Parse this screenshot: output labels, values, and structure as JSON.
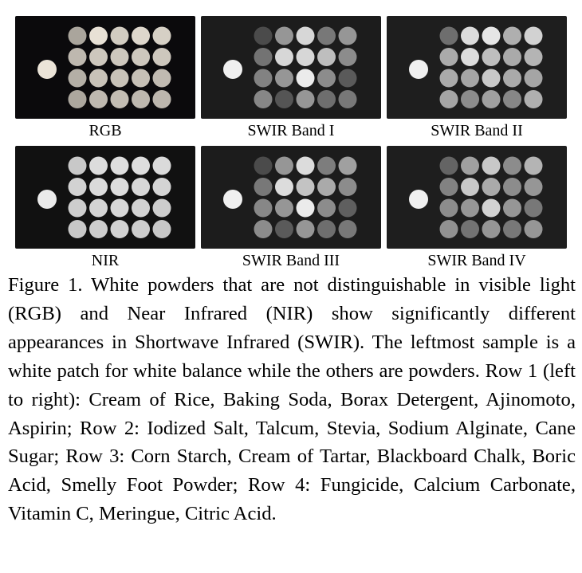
{
  "panels": [
    {
      "label": "RGB",
      "bg": "#0b0a0c",
      "white_patch": 235,
      "tint": [
        1.0,
        0.97,
        0.92
      ],
      "levels": [
        [
          170,
          232,
          210,
          222,
          214
        ],
        [
          190,
          205,
          205,
          205,
          205
        ],
        [
          180,
          200,
          200,
          198,
          192
        ],
        [
          172,
          190,
          195,
          190,
          188
        ]
      ]
    },
    {
      "label": "SWIR Band I",
      "bg": "#1c1c1c",
      "white_patch": 240,
      "tint": [
        1,
        1,
        1
      ],
      "levels": [
        [
          75,
          150,
          215,
          120,
          150
        ],
        [
          115,
          215,
          215,
          190,
          140
        ],
        [
          130,
          150,
          235,
          140,
          90
        ],
        [
          135,
          85,
          150,
          110,
          120
        ]
      ]
    },
    {
      "label": "SWIR Band II",
      "bg": "#1e1e1e",
      "white_patch": 240,
      "tint": [
        1,
        1,
        1
      ],
      "levels": [
        [
          110,
          220,
          230,
          175,
          210
        ],
        [
          170,
          220,
          190,
          170,
          180
        ],
        [
          170,
          165,
          200,
          170,
          165
        ],
        [
          165,
          140,
          160,
          135,
          175
        ]
      ]
    },
    {
      "label": "NIR",
      "bg": "#111111",
      "white_patch": 235,
      "tint": [
        1,
        1,
        1
      ],
      "levels": [
        [
          200,
          220,
          222,
          222,
          218
        ],
        [
          210,
          218,
          220,
          215,
          212
        ],
        [
          205,
          212,
          215,
          210,
          205
        ],
        [
          200,
          205,
          210,
          205,
          200
        ]
      ]
    },
    {
      "label": "SWIR Band III",
      "bg": "#1c1c1c",
      "white_patch": 240,
      "tint": [
        1,
        1,
        1
      ],
      "levels": [
        [
          75,
          150,
          220,
          125,
          160
        ],
        [
          120,
          220,
          195,
          170,
          140
        ],
        [
          135,
          150,
          235,
          140,
          95
        ],
        [
          140,
          90,
          150,
          110,
          120
        ]
      ]
    },
    {
      "label": "SWIR Band IV",
      "bg": "#1e1e1e",
      "white_patch": 240,
      "tint": [
        1,
        1,
        1
      ],
      "levels": [
        [
          100,
          160,
          200,
          140,
          180
        ],
        [
          130,
          200,
          170,
          140,
          150
        ],
        [
          140,
          150,
          210,
          150,
          120
        ],
        [
          145,
          115,
          150,
          120,
          150
        ]
      ]
    }
  ],
  "caption": {
    "figure_label": "Figure 1.",
    "text": "White powders that are not distinguishable in visible light (RGB) and Near Infrared (NIR) show significantly different appearances in Shortwave Infrared (SWIR). The leftmost sample is a white patch for white balance while the others are powders. Row 1 (left to right): Cream of Rice, Baking Soda, Borax Detergent, Ajinomoto, Aspirin; Row 2: Iodized Salt, Talcum, Stevia, Sodium Alginate, Cane Sugar; Row 3: Corn Starch, Cream of Tartar, Blackboard Chalk, Boric Acid, Smelly Foot Powder; Row 4: Fungicide, Calcium Carbonate, Vitamin C, Meringue, Citric Acid."
  }
}
